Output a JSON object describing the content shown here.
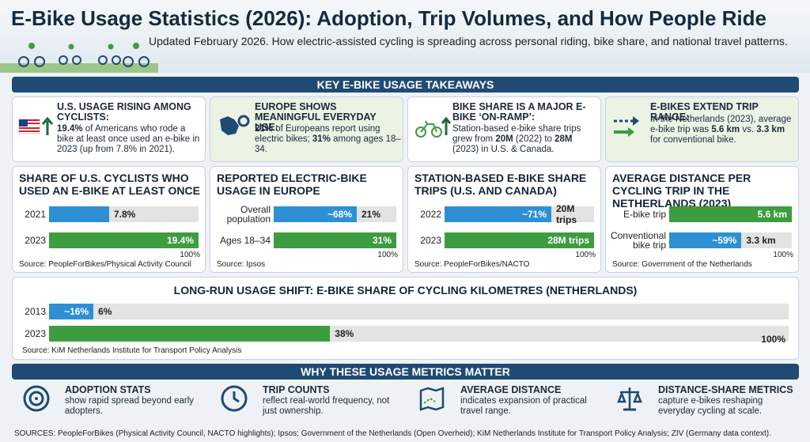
{
  "header": {
    "title": "E-Bike Usage Statistics (2026): Adoption, Trip Volumes, and How People Ride",
    "subtitle": "Updated February 2026. How electric-assisted cycling is spreading across personal riding, bike share, and national travel patterns."
  },
  "takeaways": {
    "heading": "KEY E-BIKE USAGE TAKEAWAYS",
    "cards": [
      {
        "title": "U.S. USAGE RISING AMONG CYCLISTS:",
        "body": [
          {
            "text": "19.4%",
            "bold": true
          },
          {
            "text": " of Americans who rode a bike at least once used an e-bike in 2023 (up from 7.8% in 2021)."
          }
        ]
      },
      {
        "title": "EUROPE SHOWS MEANINGFUL EVERYDAY USE:",
        "body": [
          {
            "text": "21%",
            "bold": true
          },
          {
            "text": " of Europeans report using electric bikes; "
          },
          {
            "text": "31%",
            "bold": true
          },
          {
            "text": " among ages 18–34."
          }
        ]
      },
      {
        "title": "BIKE SHARE IS A MAJOR E-BIKE ‘ON-RAMP’:",
        "body": [
          {
            "text": "Station-based e-bike share trips grew from "
          },
          {
            "text": "20M",
            "bold": true
          },
          {
            "text": " (2022) to "
          },
          {
            "text": "28M",
            "bold": true
          },
          {
            "text": " (2023) in U.S. & Canada."
          }
        ]
      },
      {
        "title": "E-BIKES EXTEND TRIP RANGE:",
        "body": [
          {
            "text": "In the Netherlands (2023), average e-bike trip was "
          },
          {
            "text": "5.6 km",
            "bold": true
          },
          {
            "text": " vs. "
          },
          {
            "text": "3.3 km",
            "bold": true
          },
          {
            "text": " for conventional bike."
          }
        ]
      }
    ]
  },
  "panels": [
    {
      "title": "SHARE OF U.S. CYCLISTS WHO USED AN E-BIKE AT LEAST ONCE",
      "rows": [
        {
          "label": "2021",
          "value": 7.8,
          "value_label": "7.8%",
          "color": "#2e8fd3"
        },
        {
          "label": "2023",
          "value": 19.4,
          "value_label": "19.4%",
          "color": "#3d9c3f"
        }
      ],
      "end_label": "100%",
      "source": "Source: PeopleForBikes/Physical Activity Council"
    },
    {
      "title": "REPORTED ELECTRIC-BIKE USAGE IN EUROPE",
      "rows": [
        {
          "label": "Overall population",
          "value": 21,
          "value_label": "21%",
          "ratio_label": "~68%",
          "color": "#2e8fd3"
        },
        {
          "label": "Ages 18–34",
          "value": 31,
          "value_label": "31%",
          "color": "#3d9c3f"
        }
      ],
      "end_label": "100%",
      "source": "Source: Ipsos"
    },
    {
      "title": "STATION-BASED E-BIKE SHARE TRIPS (U.S. AND CANADA)",
      "rows": [
        {
          "label": "2022",
          "value": 20,
          "value_label": "20M trips",
          "ratio_label": "~71%",
          "color": "#2e8fd3"
        },
        {
          "label": "2023",
          "value": 28,
          "value_label": "28M trips",
          "color": "#3d9c3f"
        }
      ],
      "end_label": "100%",
      "source": "Source: PeopleForBikes/NACTO"
    },
    {
      "title": "AVERAGE DISTANCE PER CYCLING TRIP IN THE NETHERLANDS (2023)",
      "rows": [
        {
          "label": "E-bike trip",
          "value": 5.6,
          "value_label": "5.6 km",
          "color": "#3d9c3f"
        },
        {
          "label": "Conventional bike trip",
          "value": 3.3,
          "value_label": "3.3 km",
          "ratio_label": "~59%",
          "color": "#2e8fd3"
        }
      ],
      "end_label": "100%",
      "source": "Source: Government of the Netherlands"
    }
  ],
  "long_run": {
    "title": "LONG-RUN USAGE SHIFT: E-BIKE SHARE OF CYCLING KILOMETRES (NETHERLANDS)",
    "rows": [
      {
        "label": "2013",
        "value": 6,
        "value_label": "6%",
        "ratio_label": "~16%",
        "color": "#2e8fd3"
      },
      {
        "label": "2023",
        "value": 38,
        "value_label": "38%",
        "color": "#3d9c3f"
      }
    ],
    "scale_max": {
      "value": 100,
      "label": "100%"
    },
    "source": "Source: KiM Netherlands Institute for Transport Policy Analysis"
  },
  "why": {
    "heading": "WHY THESE USAGE METRICS MATTER",
    "items": [
      {
        "title": "ADOPTION STATS",
        "text": "show rapid spread beyond early adopters."
      },
      {
        "title": "TRIP COUNTS",
        "text": "reflect real-world frequency, not just ownership."
      },
      {
        "title": "AVERAGE DISTANCE",
        "text": "indicates expansion of practical travel range."
      },
      {
        "title": "DISTANCE-SHARE METRICS",
        "text": "capture e-bikes reshaping everyday cycling at scale."
      }
    ]
  },
  "sources": "SOURCES: PeopleForBikes (Physical Activity Council, NACTO highlights); Ipsos; Government of the Netherlands (Open Overheid); KiM Netherlands Institute for Transport Policy Analysis; ZIV (Germany data context)."
}
